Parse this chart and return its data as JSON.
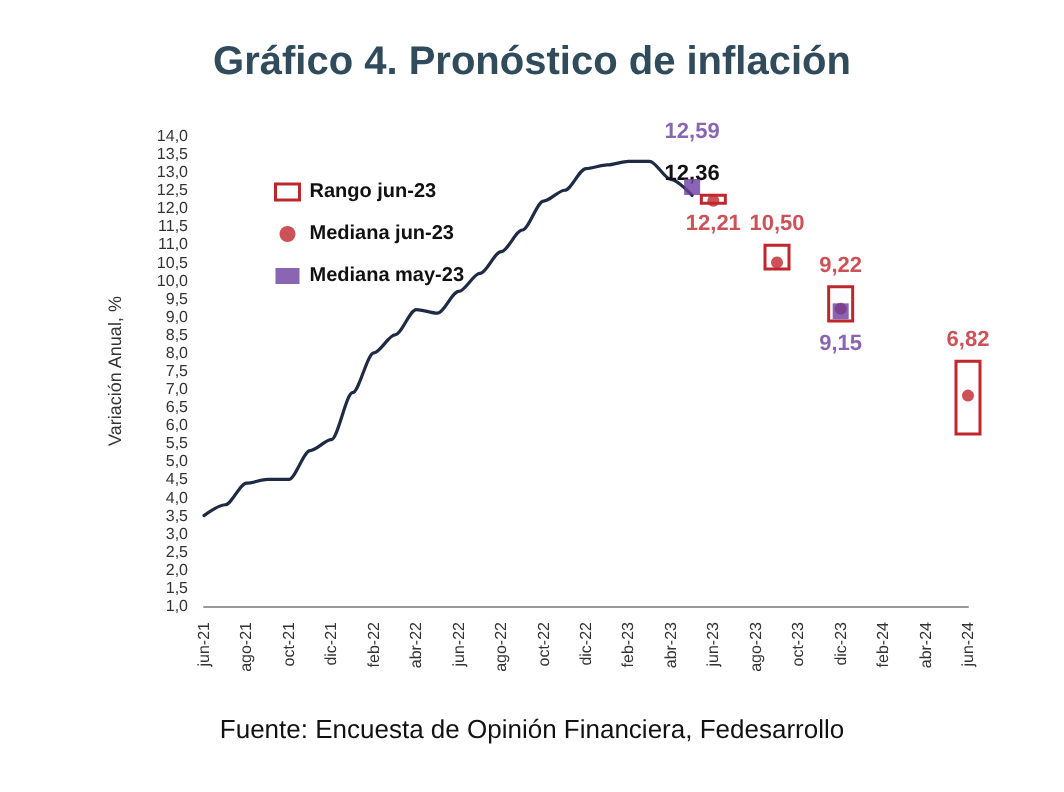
{
  "chart_data": {
    "type": "line",
    "title": "Gráfico 4. Pronóstico de inflación",
    "ylabel": "Variación Anual, %",
    "annotations": [
      "Fuente: Encuesta de Opinión Financiera, Fedesarrollo"
    ],
    "categories": [
      "jun-21",
      null,
      "ago-21",
      null,
      "oct-21",
      null,
      "dic-21",
      null,
      "feb-22",
      null,
      "abr-22",
      null,
      "jun-22",
      null,
      "ago-22",
      null,
      "oct-22",
      null,
      "dic-22",
      null,
      "feb-23",
      null,
      "abr-23",
      null,
      "jun-23",
      null,
      "ago-23",
      null,
      "oct-23",
      null,
      "dic-23",
      null,
      "feb-24",
      null,
      "abr-24",
      null,
      "jun-24"
    ],
    "ylim": [
      1,
      14
    ],
    "yticks": [
      {
        "value": 1,
        "label": "1,0"
      },
      {
        "value": 1.5,
        "label": "1,5"
      },
      {
        "value": 2,
        "label": "2,0"
      },
      {
        "value": 2.5,
        "label": "2,5"
      },
      {
        "value": 3,
        "label": "3,0"
      },
      {
        "value": 3.5,
        "label": "3,5"
      },
      {
        "value": 4,
        "label": "4,0"
      },
      {
        "value": 4.5,
        "label": "4,5"
      },
      {
        "value": 5,
        "label": "5,0"
      },
      {
        "value": 5.5,
        "label": "5,5"
      },
      {
        "value": 6,
        "label": "6,0"
      },
      {
        "value": 6.5,
        "label": "6,5"
      },
      {
        "value": 7,
        "label": "7,0"
      },
      {
        "value": 7.5,
        "label": "7,5"
      },
      {
        "value": 8,
        "label": "8,0"
      },
      {
        "value": 8.5,
        "label": "8,5"
      },
      {
        "value": 9,
        "label": "9,0"
      },
      {
        "value": 9.5,
        "label": "9,5"
      },
      {
        "value": 10,
        "label": "10,0"
      },
      {
        "value": 10.5,
        "label": "10,5"
      },
      {
        "value": 11,
        "label": "11,0"
      },
      {
        "value": 11.5,
        "label": "11,5"
      },
      {
        "value": 12,
        "label": "12,0"
      },
      {
        "value": 12.5,
        "label": "12,5"
      },
      {
        "value": 13,
        "label": "13,0"
      },
      {
        "value": 13.5,
        "label": "13,5"
      },
      {
        "value": 14,
        "label": "14,0"
      }
    ],
    "grid": false,
    "legend": "top left",
    "series": [
      {
        "color": "#1f2a44",
        "marker": "none",
        "values": [
          3.5,
          3.8,
          4.4,
          4.5,
          4.5,
          5.3,
          5.6,
          6.9,
          8.0,
          8.5,
          9.2,
          9.1,
          9.7,
          10.2,
          10.8,
          11.4,
          12.2,
          12.5,
          13.1,
          13.2,
          13.3,
          13.3,
          12.8,
          12.36,
          null,
          null,
          null,
          null,
          null,
          null,
          null,
          null,
          null,
          null,
          null,
          null,
          null
        ],
        "value_labels": [
          null,
          null,
          null,
          null,
          null,
          null,
          null,
          null,
          null,
          null,
          null,
          null,
          null,
          null,
          null,
          null,
          null,
          null,
          null,
          null,
          null,
          null,
          null,
          "12,36",
          null,
          null,
          null,
          null,
          null,
          null,
          null,
          null,
          null,
          null,
          null,
          null,
          null
        ]
      },
      {
        "type": "bar",
        "name": "Rango jun-23",
        "color": "#c0272d",
        "base": [
          null,
          null,
          null,
          null,
          null,
          null,
          null,
          null,
          null,
          null,
          null,
          null,
          null,
          null,
          null,
          null,
          null,
          null,
          null,
          null,
          null,
          null,
          null,
          null,
          12.14,
          null,
          null,
          10.32,
          null,
          null,
          8.88,
          null,
          null,
          null,
          null,
          null,
          5.76
        ],
        "values": [
          null,
          null,
          null,
          null,
          null,
          null,
          null,
          null,
          null,
          null,
          null,
          null,
          null,
          null,
          null,
          null,
          null,
          null,
          null,
          null,
          null,
          null,
          null,
          null,
          0.22,
          null,
          null,
          0.66,
          null,
          null,
          0.95,
          null,
          null,
          null,
          null,
          null,
          2.01
        ]
      },
      {
        "type": "scatter",
        "name": "Mediana jun-23",
        "color": "#c0272d",
        "marker": "circle",
        "values": [
          null,
          null,
          null,
          null,
          null,
          null,
          null,
          null,
          null,
          null,
          null,
          null,
          null,
          null,
          null,
          null,
          null,
          null,
          null,
          null,
          null,
          null,
          null,
          null,
          12.21,
          null,
          null,
          10.5,
          null,
          null,
          9.22,
          null,
          null,
          null,
          null,
          null,
          6.82
        ],
        "value_labels": [
          null,
          null,
          null,
          null,
          null,
          null,
          null,
          null,
          null,
          null,
          null,
          null,
          null,
          null,
          null,
          null,
          null,
          null,
          null,
          null,
          null,
          null,
          null,
          null,
          "12,21",
          null,
          null,
          "10,50",
          null,
          null,
          "9,22",
          null,
          null,
          null,
          null,
          null,
          "6,82"
        ]
      },
      {
        "type": "scatter",
        "name": "Mediana may-23",
        "color": "#6b3fa0",
        "marker": "square",
        "values": [
          null,
          null,
          null,
          null,
          null,
          null,
          null,
          null,
          null,
          null,
          null,
          null,
          null,
          null,
          null,
          null,
          null,
          null,
          null,
          null,
          null,
          null,
          null,
          12.59,
          null,
          null,
          null,
          null,
          null,
          null,
          9.15,
          null,
          null,
          null,
          null,
          null,
          null
        ],
        "value_labels": [
          null,
          null,
          null,
          null,
          null,
          null,
          null,
          null,
          null,
          null,
          null,
          null,
          null,
          null,
          null,
          null,
          null,
          null,
          null,
          null,
          null,
          null,
          null,
          "12,59",
          null,
          null,
          null,
          null,
          null,
          null,
          "9,15",
          null,
          null,
          null,
          null,
          null,
          null
        ]
      }
    ]
  }
}
